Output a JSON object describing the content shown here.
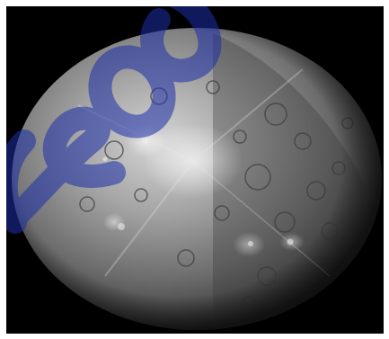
{
  "image": {
    "subject": "planet-mercury",
    "colors": {
      "frame": "#ffffff",
      "space": "#000000",
      "surface_light": "#d8d8d8",
      "surface_mid": "#8a8a8a",
      "surface_dark": "#2a2a2a",
      "watermark": "#1c2fa8"
    },
    "watermark": {
      "text": "©SO",
      "opacity": 0.55
    }
  }
}
